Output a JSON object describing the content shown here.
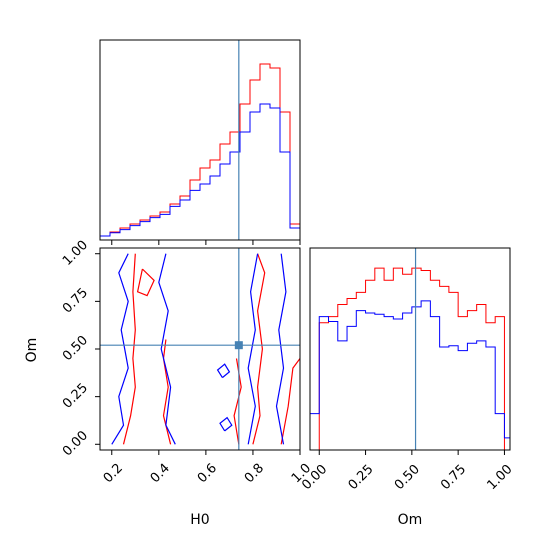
{
  "colors": {
    "red": "#ff0000",
    "blue": "#0000ff",
    "truth": "#4682b4",
    "axes": "#000000"
  },
  "chart_data": {
    "type": "corner",
    "parameters": [
      "H0",
      "Om"
    ],
    "truth": {
      "H0": 0.74,
      "Om": 0.52
    },
    "hist_h0": {
      "x_range": [
        0.15,
        1.0
      ],
      "bin_edges": [
        0.15,
        0.1925,
        0.235,
        0.2775,
        0.32,
        0.3625,
        0.405,
        0.4475,
        0.49,
        0.5325,
        0.575,
        0.6175,
        0.66,
        0.7025,
        0.745,
        0.7875,
        0.83,
        0.8725,
        0.915,
        0.9575,
        1.0
      ],
      "series": [
        {
          "color": "red",
          "values": [
            0.5,
            1.0,
            1.5,
            2.0,
            2.5,
            3.0,
            3.5,
            4.5,
            5.5,
            7.5,
            9.0,
            10.0,
            12.0,
            13.5,
            17.0,
            20.0,
            22.0,
            21.5,
            16.0,
            2.0
          ]
        },
        {
          "color": "blue",
          "values": [
            0.5,
            0.9,
            1.3,
            1.8,
            2.3,
            2.8,
            3.2,
            4.2,
            5.0,
            6.2,
            7.0,
            8.0,
            9.5,
            11.0,
            13.5,
            16.0,
            17.0,
            16.5,
            11.0,
            1.5
          ]
        }
      ]
    },
    "hist_om": {
      "x_range": [
        -0.05,
        1.03
      ],
      "bin_edges": [
        -0.05,
        0.0,
        0.05,
        0.1,
        0.15,
        0.2,
        0.25,
        0.3,
        0.35,
        0.4,
        0.45,
        0.5,
        0.55,
        0.6,
        0.65,
        0.7,
        0.75,
        0.8,
        0.85,
        0.9,
        0.95,
        1.0,
        1.03
      ],
      "series": [
        {
          "color": "red",
          "values": [
            0,
            10.5,
            11,
            12,
            12.5,
            13,
            14,
            15,
            14,
            15,
            14.5,
            15,
            14.8,
            14,
            13.5,
            13,
            11,
            11.5,
            12,
            10.5,
            11,
            0
          ]
        },
        {
          "color": "blue",
          "values": [
            3,
            11,
            10.6,
            9,
            10.2,
            11.5,
            11.3,
            11.2,
            11.0,
            10.8,
            11.3,
            11.8,
            12.3,
            11.0,
            8.5,
            8.6,
            8.2,
            8.8,
            9,
            8.5,
            3,
            1
          ]
        }
      ]
    },
    "contours": [
      {
        "color": "red",
        "points": [
          [
            0.25,
            0.0
          ],
          [
            0.28,
            0.15
          ],
          [
            0.3,
            0.3
          ],
          [
            0.29,
            0.45
          ],
          [
            0.3,
            0.6
          ],
          [
            0.29,
            0.8
          ],
          [
            0.3,
            1.0
          ]
        ]
      },
      {
        "color": "red",
        "points": [
          [
            0.45,
            0.0
          ],
          [
            0.42,
            0.15
          ],
          [
            0.44,
            0.3
          ],
          [
            0.42,
            0.45
          ],
          [
            0.43,
            0.55
          ]
        ]
      },
      {
        "color": "red",
        "points": [
          [
            0.33,
            0.92
          ],
          [
            0.38,
            0.86
          ],
          [
            0.35,
            0.78
          ],
          [
            0.31,
            0.8
          ],
          [
            0.33,
            0.92
          ]
        ]
      },
      {
        "color": "red",
        "points": [
          [
            0.8,
            0.0
          ],
          [
            0.83,
            0.15
          ],
          [
            0.82,
            0.3
          ],
          [
            0.84,
            0.5
          ],
          [
            0.82,
            0.7
          ],
          [
            0.85,
            0.9
          ],
          [
            0.82,
            1.0
          ]
        ]
      },
      {
        "color": "red",
        "points": [
          [
            0.74,
            0.0
          ],
          [
            0.72,
            0.15
          ],
          [
            0.75,
            0.3
          ],
          [
            0.73,
            0.45
          ]
        ]
      },
      {
        "color": "red",
        "points": [
          [
            0.92,
            0.0
          ],
          [
            0.95,
            0.2
          ],
          [
            0.97,
            0.4
          ],
          [
            1.0,
            0.45
          ]
        ]
      },
      {
        "color": "blue",
        "points": [
          [
            0.2,
            0.0
          ],
          [
            0.25,
            0.1
          ],
          [
            0.23,
            0.25
          ],
          [
            0.27,
            0.4
          ],
          [
            0.24,
            0.6
          ],
          [
            0.27,
            0.75
          ],
          [
            0.23,
            0.9
          ],
          [
            0.27,
            1.0
          ]
        ]
      },
      {
        "color": "blue",
        "points": [
          [
            0.47,
            0.0
          ],
          [
            0.43,
            0.1
          ],
          [
            0.45,
            0.3
          ],
          [
            0.41,
            0.5
          ],
          [
            0.44,
            0.7
          ],
          [
            0.4,
            0.85
          ],
          [
            0.43,
            1.0
          ]
        ]
      },
      {
        "color": "blue",
        "points": [
          [
            0.78,
            0.0
          ],
          [
            0.81,
            0.2
          ],
          [
            0.78,
            0.4
          ],
          [
            0.81,
            0.6
          ],
          [
            0.79,
            0.8
          ],
          [
            0.82,
            1.0
          ]
        ]
      },
      {
        "color": "blue",
        "points": [
          [
            0.93,
            0.0
          ],
          [
            0.9,
            0.2
          ],
          [
            0.93,
            0.4
          ],
          [
            0.91,
            0.6
          ],
          [
            0.94,
            0.8
          ],
          [
            0.92,
            1.0
          ]
        ]
      },
      {
        "color": "blue",
        "points": [
          [
            0.67,
            0.35
          ],
          [
            0.7,
            0.38
          ],
          [
            0.68,
            0.42
          ],
          [
            0.65,
            0.39
          ],
          [
            0.67,
            0.35
          ]
        ]
      },
      {
        "color": "blue",
        "points": [
          [
            0.68,
            0.07
          ],
          [
            0.71,
            0.1
          ],
          [
            0.69,
            0.14
          ],
          [
            0.66,
            0.11
          ],
          [
            0.68,
            0.07
          ]
        ]
      }
    ],
    "axes": {
      "h0": {
        "label": "H0",
        "ticks": [
          0.2,
          0.4,
          0.6,
          0.8,
          1.0
        ],
        "tick_labels": [
          "0.2",
          "0.4",
          "0.6",
          "0.8",
          "1.0"
        ]
      },
      "om_y": {
        "label": "Om",
        "ticks": [
          0.0,
          0.25,
          0.5,
          0.75,
          1.0
        ],
        "tick_labels": [
          "0.00",
          "0.25",
          "0.50",
          "0.75",
          "1.00"
        ]
      },
      "om_x": {
        "label": "Om",
        "ticks": [
          0.0,
          0.25,
          0.5,
          0.75,
          1.0
        ],
        "tick_labels": [
          "0.00",
          "0.25",
          "0.50",
          "0.75",
          "1.00"
        ]
      }
    }
  }
}
